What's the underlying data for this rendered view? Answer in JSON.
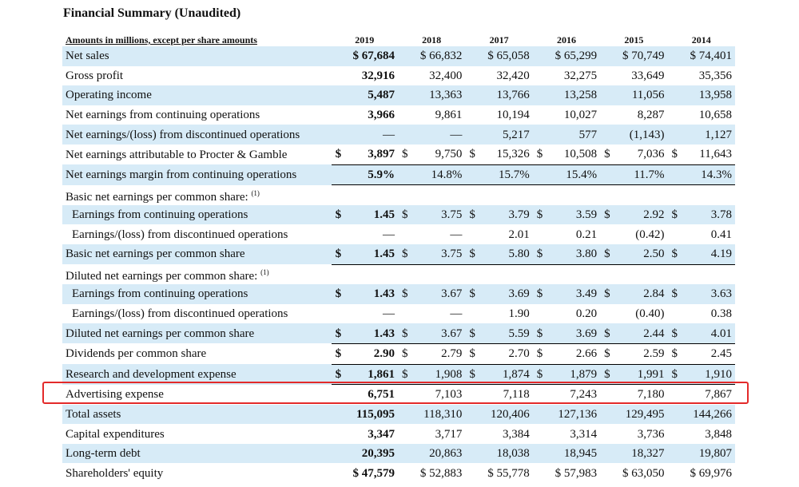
{
  "title": "Financial Summary (Unaudited)",
  "header": {
    "label": "Amounts in millions, except per share amounts",
    "years": [
      "2019",
      "2018",
      "2017",
      "2016",
      "2015",
      "2014"
    ]
  },
  "highlight_color": "#e32a2a",
  "shade_color": "#d7ebf7",
  "rows": [
    {
      "label": "Net sales",
      "values": [
        "$ 67,684",
        "$ 66,832",
        "$ 65,058",
        "$ 65,299",
        "$ 70,749",
        "$ 74,401"
      ]
    },
    {
      "label": "Gross profit",
      "values": [
        "32,916",
        "32,400",
        "32,420",
        "32,275",
        "33,649",
        "35,356"
      ]
    },
    {
      "label": "Operating income",
      "values": [
        "5,487",
        "13,363",
        "13,766",
        "13,258",
        "11,056",
        "13,958"
      ]
    },
    {
      "label": "Net earnings from continuing operations",
      "values": [
        "3,966",
        "9,861",
        "10,194",
        "10,027",
        "8,287",
        "10,658"
      ]
    },
    {
      "label": "Net earnings/(loss) from discontinued operations",
      "values": [
        "—",
        "—",
        "5,217",
        "577",
        "(1,143)",
        "1,127"
      ]
    },
    {
      "label": "Net earnings attributable to Procter & Gamble",
      "values": [
        [
          "$",
          "3,897"
        ],
        [
          "$",
          "9,750"
        ],
        [
          "$",
          "15,326"
        ],
        [
          "$",
          "10,508"
        ],
        [
          "$",
          "7,036"
        ],
        [
          "$",
          "11,643"
        ]
      ]
    },
    {
      "label": "Net earnings margin from continuing operations",
      "values": [
        "5.9%",
        "14.8%",
        "15.7%",
        "15.4%",
        "11.7%",
        "14.3%"
      ]
    },
    {
      "label": "Basic net earnings per common share:",
      "sup": "(1)"
    },
    {
      "label": "Earnings from continuing operations",
      "values": [
        [
          "$",
          "1.45"
        ],
        [
          "$",
          "3.75"
        ],
        [
          "$",
          "3.79"
        ],
        [
          "$",
          "3.59"
        ],
        [
          "$",
          "2.92"
        ],
        [
          "$",
          "3.78"
        ]
      ]
    },
    {
      "label": "Earnings/(loss) from discontinued operations",
      "values": [
        "—",
        "—",
        "2.01",
        "0.21",
        "(0.42)",
        "0.41"
      ]
    },
    {
      "label": "Basic net earnings per common share",
      "values": [
        [
          "$",
          "1.45"
        ],
        [
          "$",
          "3.75"
        ],
        [
          "$",
          "5.80"
        ],
        [
          "$",
          "3.80"
        ],
        [
          "$",
          "2.50"
        ],
        [
          "$",
          "4.19"
        ]
      ]
    },
    {
      "label": "Diluted net earnings per common share:",
      "sup": "(1)"
    },
    {
      "label": "Earnings from continuing operations",
      "values": [
        [
          "$",
          "1.43"
        ],
        [
          "$",
          "3.67"
        ],
        [
          "$",
          "3.69"
        ],
        [
          "$",
          "3.49"
        ],
        [
          "$",
          "2.84"
        ],
        [
          "$",
          "3.63"
        ]
      ]
    },
    {
      "label": "Earnings/(loss) from discontinued operations",
      "values": [
        "—",
        "—",
        "1.90",
        "0.20",
        "(0.40)",
        "0.38"
      ]
    },
    {
      "label": "Diluted net earnings per common share",
      "values": [
        [
          "$",
          "1.43"
        ],
        [
          "$",
          "3.67"
        ],
        [
          "$",
          "5.59"
        ],
        [
          "$",
          "3.69"
        ],
        [
          "$",
          "2.44"
        ],
        [
          "$",
          "4.01"
        ]
      ]
    },
    {
      "label": "Dividends per common share",
      "values": [
        [
          "$",
          "2.90"
        ],
        [
          "$",
          "2.79"
        ],
        [
          "$",
          "2.70"
        ],
        [
          "$",
          "2.66"
        ],
        [
          "$",
          "2.59"
        ],
        [
          "$",
          "2.45"
        ]
      ]
    },
    {
      "label": "Research and development expense",
      "values": [
        [
          "$",
          "1,861"
        ],
        [
          "$",
          "1,908"
        ],
        [
          "$",
          "1,874"
        ],
        [
          "$",
          "1,879"
        ],
        [
          "$",
          "1,991"
        ],
        [
          "$",
          "1,910"
        ]
      ]
    },
    {
      "label": "Advertising expense",
      "values": [
        "6,751",
        "7,103",
        "7,118",
        "7,243",
        "7,180",
        "7,867"
      ]
    },
    {
      "label": "Total assets",
      "values": [
        "115,095",
        "118,310",
        "120,406",
        "127,136",
        "129,495",
        "144,266"
      ]
    },
    {
      "label": "Capital expenditures",
      "values": [
        "3,347",
        "3,717",
        "3,384",
        "3,314",
        "3,736",
        "3,848"
      ]
    },
    {
      "label": "Long-term debt",
      "values": [
        "20,395",
        "20,863",
        "18,038",
        "18,945",
        "18,327",
        "19,807"
      ]
    },
    {
      "label": "Shareholders' equity",
      "values": [
        "$ 47,579",
        "$ 52,883",
        "$ 55,778",
        "$ 57,983",
        "$ 63,050",
        "$ 69,976"
      ]
    }
  ]
}
